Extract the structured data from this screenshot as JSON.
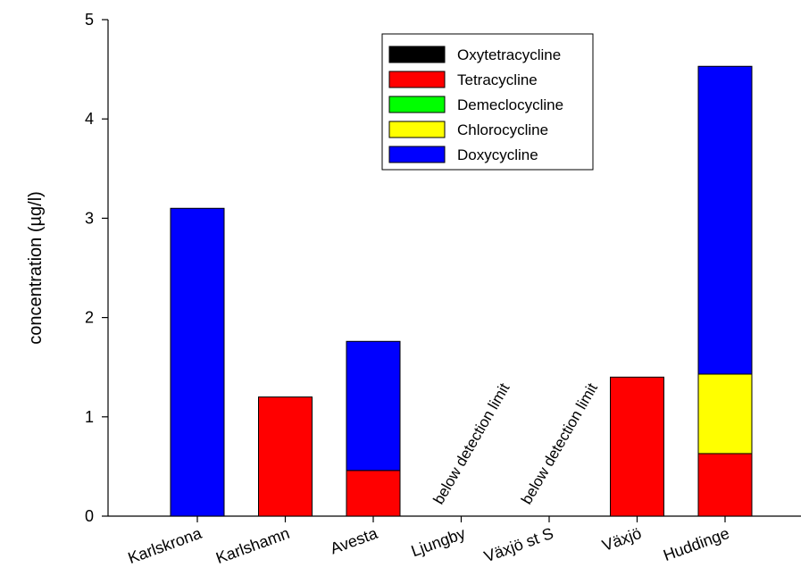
{
  "chart_data": {
    "type": "bar",
    "stacked": true,
    "title": "",
    "xlabel": "",
    "ylabel": "concentration (µg/l)",
    "ylim": [
      0,
      5
    ],
    "yticks": [
      "0",
      "1",
      "2",
      "3",
      "4",
      "5"
    ],
    "grid": false,
    "legend_position": "top-right",
    "categories": [
      "Karlskrona",
      "Karlshamn",
      "Avesta",
      "Ljungby",
      "Växjö st S",
      "Växjö",
      "Huddinge"
    ],
    "series": [
      {
        "name": "Oxytetracycline",
        "color": "#000000",
        "values": [
          0,
          0,
          0,
          0,
          0,
          0,
          0
        ]
      },
      {
        "name": "Tetracycline",
        "color": "#ff0000",
        "values": [
          0,
          1.2,
          0.46,
          0,
          0,
          1.4,
          0.63
        ]
      },
      {
        "name": "Demeclocycline",
        "color": "#00ff00",
        "values": [
          0,
          0,
          0,
          0,
          0,
          0,
          0
        ]
      },
      {
        "name": "Chlorocycline",
        "color": "#ffff00",
        "values": [
          0,
          0,
          0,
          0,
          0,
          0,
          0.8
        ]
      },
      {
        "name": "Doxycycline",
        "color": "#0000ff",
        "values": [
          3.1,
          0,
          1.3,
          0,
          0,
          0,
          3.1
        ]
      }
    ],
    "annotations": [
      {
        "category": "Ljungby",
        "text": "below detection limit"
      },
      {
        "category": "Växjö st S",
        "text": "below detection limit"
      }
    ]
  }
}
